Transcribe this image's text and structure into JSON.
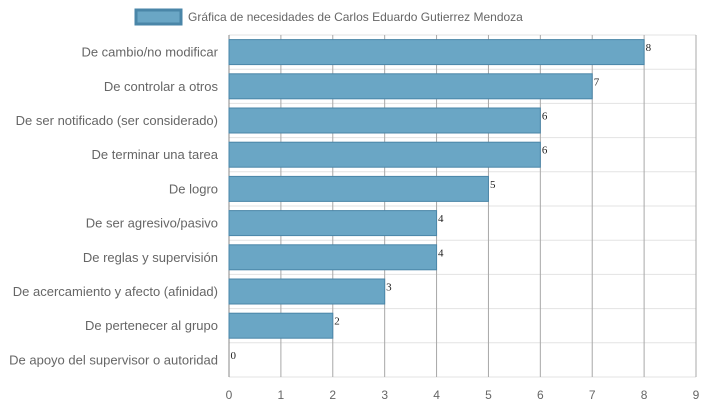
{
  "chart_data": {
    "type": "bar",
    "orientation": "horizontal",
    "legend_position": "top-center",
    "grid": true,
    "xlim": [
      0,
      9
    ],
    "x_ticks": [
      "0",
      "1",
      "2",
      "3",
      "4",
      "5",
      "6",
      "7",
      "8",
      "9"
    ],
    "categories": [
      "De cambio/no modificar",
      "De controlar a otros",
      "De ser notificado (ser considerado)",
      "De terminar una tarea",
      "De logro",
      "De ser agresivo/pasivo",
      "De reglas y supervisión",
      "De acercamiento y afecto (afinidad)",
      "De pertenecer al grupo",
      "De apoyo del supervisor o autoridad"
    ],
    "series": [
      {
        "name": "Gráfica de necesidades de Carlos Eduardo Gutierrez Mendoza",
        "values": [
          8,
          7,
          6,
          6,
          5,
          4,
          4,
          3,
          2,
          0
        ],
        "color": "#6aa6c5",
        "border_color": "#4a86a8"
      }
    ]
  }
}
